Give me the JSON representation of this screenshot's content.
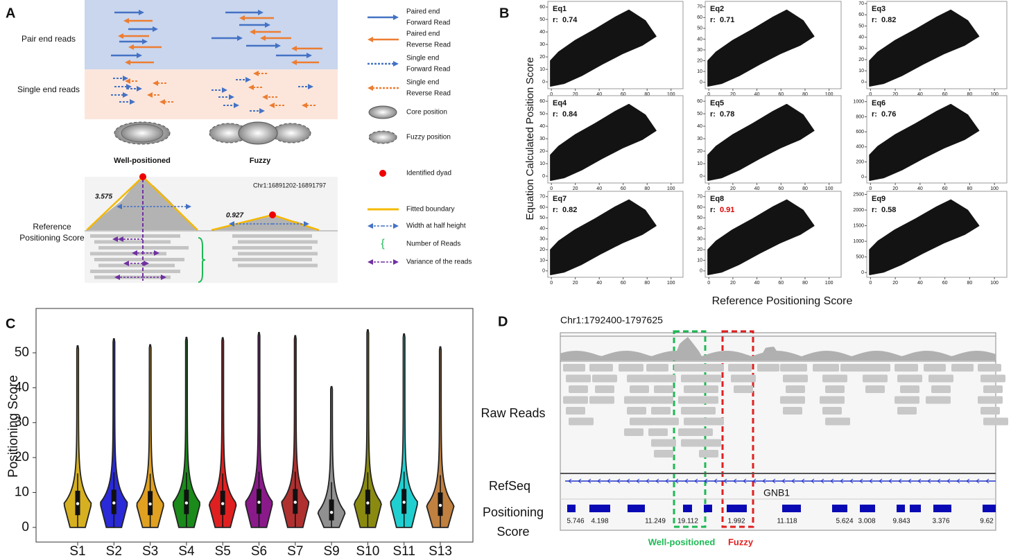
{
  "panel_a": {
    "label": "A",
    "rows": [
      "Pair end reads",
      "Single end reads"
    ],
    "nucleosomes": [
      "Well-positioned",
      "Fuzzy"
    ],
    "locus": "Chr1:16891202-16891797",
    "scores": [
      3.575,
      0.927
    ],
    "track_label": "Reference Positioning Score",
    "legend": [
      {
        "lines": [
          "Paired end",
          "Forward Read"
        ]
      },
      {
        "lines": [
          "Paired end",
          "Reverse Read"
        ]
      },
      {
        "lines": [
          "Single end",
          "Forward Read"
        ]
      },
      {
        "lines": [
          "Single end",
          "Reverse Read"
        ]
      },
      {
        "lines": [
          "Core position"
        ]
      },
      {
        "lines": [
          "Fuzzy position"
        ]
      },
      {
        "lines": [
          "Identified dyad"
        ]
      },
      {
        "lines": [
          "Fitted boundary"
        ]
      },
      {
        "lines": [
          "Width at half height"
        ]
      },
      {
        "lines": [
          "Number of Reads"
        ]
      },
      {
        "lines": [
          "Variance of the reads"
        ]
      }
    ]
  },
  "panel_b": {
    "label": "B",
    "xlabel": "Reference Positioning Score",
    "ylabel": "Equation Calculated Position Score"
  },
  "panel_c": {
    "label": "C"
  },
  "chart_data": [
    {
      "type": "scatter",
      "title": "Eq1",
      "r_text": "r:",
      "r_value": 0.74,
      "xlim": [
        -3,
        110
      ],
      "xticks": [
        0,
        20,
        40,
        60,
        80,
        100
      ],
      "ylim": [
        -5.5,
        64.5
      ],
      "yticks": [
        0,
        10,
        20,
        30,
        40,
        50,
        60
      ]
    },
    {
      "type": "scatter",
      "title": "Eq2",
      "r_text": "r:",
      "r_value": 0.71,
      "xlim": [
        -3,
        110
      ],
      "xticks": [
        0,
        20,
        40,
        60,
        80,
        100
      ],
      "ylim": [
        -6,
        75
      ],
      "yticks": [
        0,
        10,
        20,
        30,
        40,
        50,
        60,
        70
      ]
    },
    {
      "type": "scatter",
      "title": "Eq3",
      "r_text": "r:",
      "r_value": 0.82,
      "xlim": [
        -3,
        110
      ],
      "xticks": [
        0,
        20,
        40,
        60,
        80,
        100
      ],
      "ylim": [
        -6,
        72
      ],
      "yticks": [
        0,
        10,
        20,
        30,
        40,
        50,
        60,
        70
      ]
    },
    {
      "type": "scatter",
      "title": "Eq4",
      "r_text": "r:",
      "r_value": 0.84,
      "xlim": [
        -3,
        110
      ],
      "xticks": [
        0,
        20,
        40,
        60,
        80,
        100
      ],
      "ylim": [
        -5.5,
        64.5
      ],
      "yticks": [
        0,
        10,
        20,
        30,
        40,
        50,
        60
      ]
    },
    {
      "type": "scatter",
      "title": "Eq5",
      "r_text": "r:",
      "r_value": 0.78,
      "xlim": [
        -3,
        110
      ],
      "xticks": [
        0,
        20,
        40,
        60,
        80,
        100
      ],
      "ylim": [
        -5.5,
        64.5
      ],
      "yticks": [
        0,
        10,
        20,
        30,
        40,
        50,
        60
      ]
    },
    {
      "type": "scatter",
      "title": "Eq6",
      "r_text": "r:",
      "r_value": 0.76,
      "xlim": [
        -3,
        110
      ],
      "xticks": [
        0,
        20,
        40,
        60,
        80,
        100
      ],
      "ylim": [
        -80,
        1080
      ],
      "yticks": [
        0,
        200,
        400,
        600,
        800,
        1000
      ]
    },
    {
      "type": "scatter",
      "title": "Eq7",
      "r_text": "r:",
      "r_value": 0.82,
      "xlim": [
        -3,
        110
      ],
      "xticks": [
        0,
        20,
        40,
        60,
        80,
        100
      ],
      "ylim": [
        -6,
        75
      ],
      "yticks": [
        0,
        10,
        20,
        30,
        40,
        50,
        60,
        70
      ]
    },
    {
      "type": "scatter",
      "title": "Eq8",
      "r_text": "r:",
      "r_value": 0.91,
      "r_color": "#e00000",
      "xlim": [
        -3,
        110
      ],
      "xticks": [
        0,
        20,
        40,
        60,
        80,
        100
      ],
      "ylim": [
        -6,
        75
      ],
      "yticks": [
        0,
        10,
        20,
        30,
        40,
        50,
        60,
        70
      ]
    },
    {
      "type": "scatter",
      "title": "Eq9",
      "r_text": "r:",
      "r_value": 0.58,
      "xlim": [
        -3,
        110
      ],
      "xticks": [
        0,
        20,
        40,
        60,
        80,
        100
      ],
      "ylim": [
        -150,
        2600
      ],
      "yticks": [
        0,
        500,
        1000,
        1500,
        2000,
        2500
      ]
    },
    {
      "type": "violin",
      "ylabel": "Positioning Score",
      "categories": [
        "S1",
        "S2",
        "S3",
        "S4",
        "S5",
        "S6",
        "S7",
        "S9",
        "S10",
        "S11",
        "S13"
      ],
      "colors": [
        "#d6b020",
        "#2a2ad8",
        "#e0a020",
        "#1a8a1a",
        "#e02020",
        "#8a1a8a",
        "#b03030",
        "#909090",
        "#8a8a10",
        "#20d0d0",
        "#c08040"
      ],
      "min": [
        0,
        0,
        0,
        0,
        0,
        0,
        0,
        0,
        0,
        0,
        0
      ],
      "q1": [
        3.5,
        3.8,
        3.5,
        3.8,
        3.6,
        3.9,
        3.9,
        2,
        3.8,
        3.9,
        3.3
      ],
      "median": [
        6.8,
        7,
        6.7,
        7,
        6.8,
        7.2,
        7.2,
        4.3,
        7,
        7.2,
        6.3
      ],
      "q3": [
        10.5,
        10.8,
        10.4,
        10.8,
        10.5,
        11,
        11,
        8,
        10.8,
        11,
        10
      ],
      "max": [
        52,
        54,
        52.3,
        54.4,
        54.3,
        55.8,
        54.9,
        40.3,
        56.6,
        55.4,
        51.7
      ],
      "ylim": [
        -4.2,
        62.7
      ],
      "yticks": [
        0,
        10,
        20,
        30,
        40,
        50
      ]
    }
  ],
  "panel_d": {
    "label": "D",
    "locus": "Chr1:1792400-1797625",
    "tracks": [
      "Raw Reads",
      "RefSeq"
    ],
    "score_label": [
      "Positioning",
      "Score"
    ],
    "gene": "GNB1",
    "scores": [
      5.746,
      4.198,
      11.249,
      19.112,
      1.992,
      11.118,
      5.624,
      3.008,
      9.843,
      3.376,
      9.62
    ],
    "boxes": [
      "Well-positioned",
      "Fuzzy"
    ]
  }
}
